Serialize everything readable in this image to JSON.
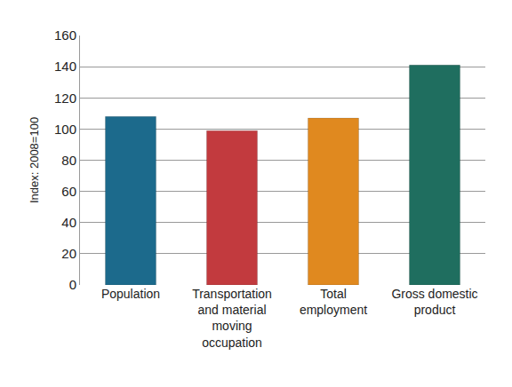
{
  "chart_data": {
    "type": "bar",
    "y_label": "Index: 2008=100",
    "categories": [
      "Population",
      "Transportation and material moving occupation",
      "Total employment",
      "Gross domestic product"
    ],
    "values": [
      108,
      99,
      107,
      141
    ],
    "colors": [
      "#1c6a8c",
      "#c23a3e",
      "#e0891f",
      "#1f6e5f"
    ],
    "ylim": [
      0,
      160
    ],
    "yticks": [
      0,
      20,
      40,
      60,
      80,
      100,
      120,
      140,
      160
    ],
    "grid": true
  }
}
